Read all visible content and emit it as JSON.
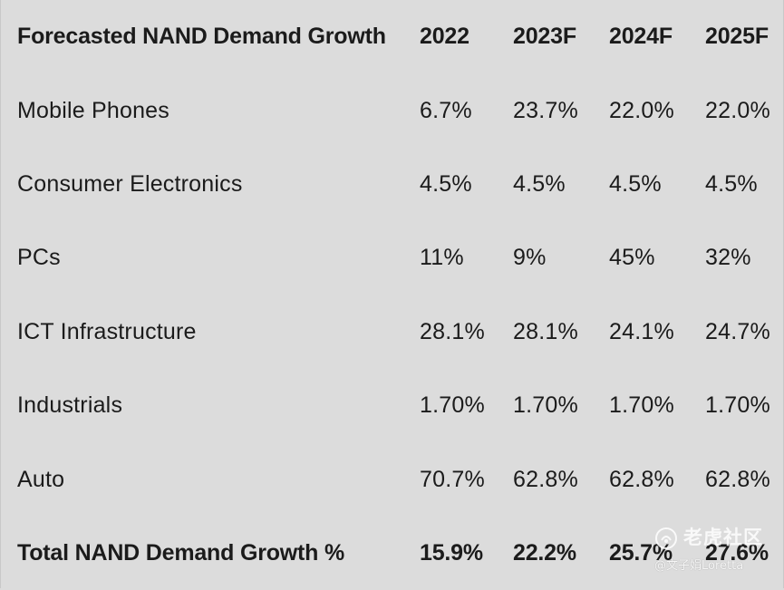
{
  "chart_data": {
    "type": "table",
    "title": "Forecasted NAND Demand Growth",
    "columns": [
      "2022",
      "2023F",
      "2024F",
      "2025F"
    ],
    "rows": [
      {
        "label": "Mobile Phones",
        "values": [
          "6.7%",
          "23.7%",
          "22.0%",
          "22.0%"
        ]
      },
      {
        "label": "Consumer Electronics",
        "values": [
          "4.5%",
          "4.5%",
          "4.5%",
          "4.5%"
        ]
      },
      {
        "label": "PCs",
        "values": [
          "11%",
          "9%",
          "45%",
          "32%"
        ]
      },
      {
        "label": "ICT Infrastructure",
        "values": [
          "28.1%",
          "28.1%",
          "24.1%",
          "24.7%"
        ]
      },
      {
        "label": "Industrials",
        "values": [
          "1.70%",
          "1.70%",
          "1.70%",
          "1.70%"
        ]
      },
      {
        "label": "Auto",
        "values": [
          "70.7%",
          "62.8%",
          "62.8%",
          "62.8%"
        ]
      }
    ],
    "total": {
      "label": "Total NAND Demand Growth %",
      "values": [
        "15.9%",
        "22.2%",
        "25.7%",
        "27.6%"
      ]
    }
  },
  "watermark": {
    "name": "老虎社区",
    "handle": "@文子娟Loretta",
    "icon": "tiger-logo-icon"
  },
  "colors": {
    "background": "#dcdcdc",
    "text": "#1b1b1b"
  }
}
